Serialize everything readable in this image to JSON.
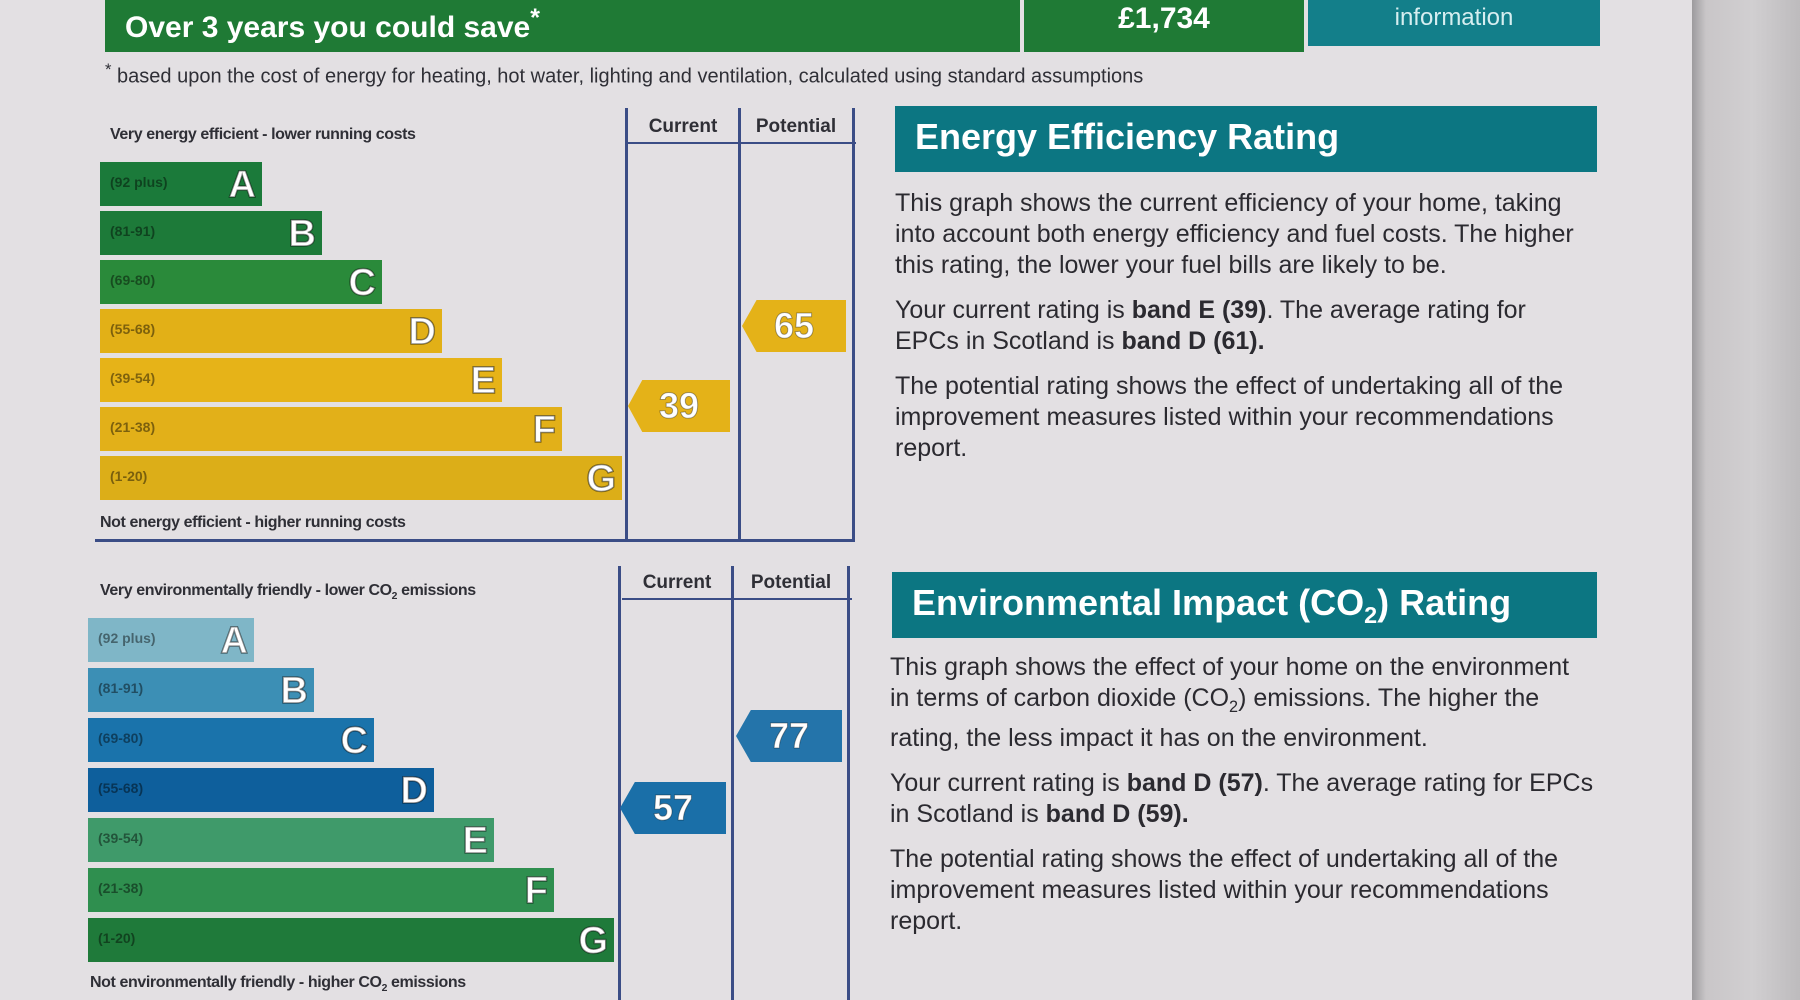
{
  "header": {
    "save_label": "Over 3 years you could save",
    "save_mark": "*",
    "save_amount": "£1,734",
    "info_label": "information"
  },
  "footnote": {
    "mark": "*",
    "text": "based upon the cost of energy for heating, hot water, lighting and ventilation, calculated using standard assumptions"
  },
  "energy_chart": {
    "top_label": "Very energy efficient - lower running costs",
    "bottom_label": "Not energy efficient - higher running costs",
    "current_header": "Current",
    "potential_header": "Potential",
    "current_value": "39",
    "potential_value": "65",
    "bands": [
      {
        "range": "(92 plus)",
        "letter": "A",
        "color": "#1b7a3a"
      },
      {
        "range": "(81-91)",
        "letter": "B",
        "color": "#1d7a39"
      },
      {
        "range": "(69-80)",
        "letter": "C",
        "color": "#2a8a3a"
      },
      {
        "range": "(55-68)",
        "letter": "D",
        "color": "#e2b017"
      },
      {
        "range": "(39-54)",
        "letter": "E",
        "color": "#e6b318"
      },
      {
        "range": "(21-38)",
        "letter": "F",
        "color": "#e2b019"
      },
      {
        "range": "(1-20)",
        "letter": "G",
        "color": "#dcae18"
      }
    ],
    "current_color": "#e4b218",
    "potential_color": "#e4b218"
  },
  "env_chart": {
    "top_label": "Very environmentally friendly - lower CO",
    "top_label_sub": "2",
    "top_label_end": " emissions",
    "bottom_label": "Not environmentally friendly - higher CO",
    "bottom_label_sub": "2",
    "bottom_label_end": " emissions",
    "current_header": "Current",
    "potential_header": "Potential",
    "current_value": "57",
    "potential_value": "77",
    "bands": [
      {
        "range": "(92 plus)",
        "letter": "A",
        "color": "#7fb6c7"
      },
      {
        "range": "(81-91)",
        "letter": "B",
        "color": "#3c8fb5"
      },
      {
        "range": "(69-80)",
        "letter": "C",
        "color": "#1a73ab"
      },
      {
        "range": "(55-68)",
        "letter": "D",
        "color": "#0e5f9c"
      },
      {
        "range": "(39-54)",
        "letter": "E",
        "color": "#3f9a6a"
      },
      {
        "range": "(21-38)",
        "letter": "F",
        "color": "#2f8f4f"
      },
      {
        "range": "(1-20)",
        "letter": "G",
        "color": "#1f7a3a"
      }
    ],
    "current_color": "#1a6fa8",
    "potential_color": "#2474aa"
  },
  "energy_panel": {
    "title": "Energy Efficiency Rating",
    "p1": "This graph shows the current efficiency of your home, taking into account both energy efficiency and fuel costs. The higher this rating, the lower your fuel bills are likely to be.",
    "p2_a": "Your current rating is ",
    "p2_b": "band E (39)",
    "p2_c": ". The average rating for EPCs in Scotland is ",
    "p2_d": "band D (61).",
    "p3": "The potential rating shows the effect of undertaking all of the improvement measures listed within your recommendations report."
  },
  "env_panel": {
    "title_a": "Environmental Impact (CO",
    "title_sub": "2",
    "title_b": ") Rating",
    "p1_a": "This graph shows the effect of your home on the environment in terms of carbon dioxide (CO",
    "p1_sub": "2",
    "p1_b": ") emissions. The higher the rating, the less impact it has on the environment.",
    "p2_a": "Your current rating is ",
    "p2_b": "band D (57)",
    "p2_c": ". The average rating for EPCs in Scotland is ",
    "p2_d": "band D (59).",
    "p3": "The potential rating shows the effect of undertaking all of the improvement measures listed within your recommendations report."
  }
}
